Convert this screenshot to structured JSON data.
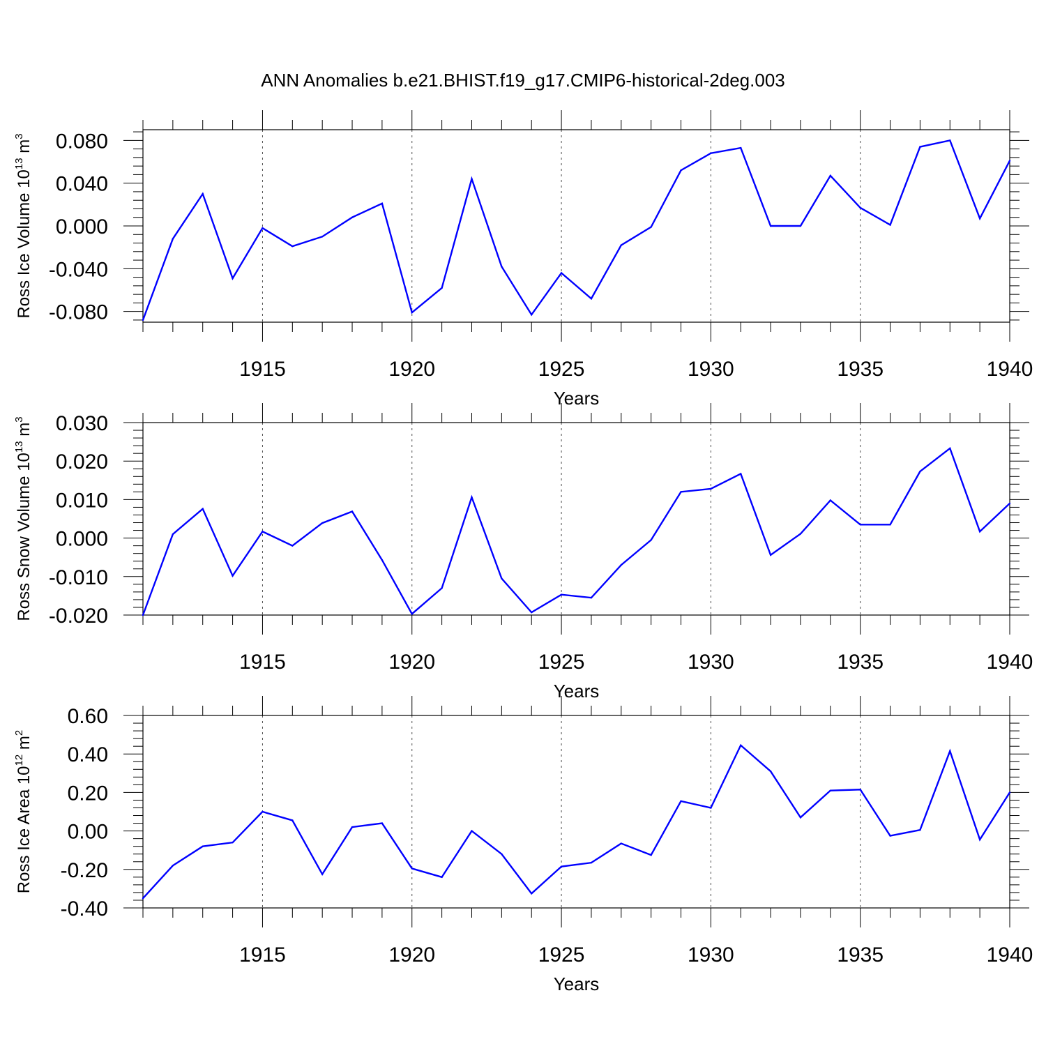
{
  "title": "ANN Anomalies b.e21.BHIST.f19_g17.CMIP6-historical-2deg.003",
  "colors": {
    "line": "#0000ff",
    "axes": "#000000",
    "grid": "#000000"
  },
  "chart_data": [
    {
      "type": "line",
      "ylabel_text": "Ross Ice Volume 10",
      "ylabel_exp": "13",
      "ylabel_unit": " m",
      "ylabel_unit_exp": "3",
      "xlabel": "Years",
      "xlim": [
        1911,
        1940
      ],
      "ylim": [
        -0.09,
        0.09
      ],
      "yticks": [
        -0.08,
        -0.04,
        0.0,
        0.04,
        0.08
      ],
      "ytick_labels": [
        "-0.080",
        "-0.040",
        "0.000",
        "0.040",
        "0.080"
      ],
      "xticks": [
        1915,
        1920,
        1925,
        1930,
        1935,
        1940
      ],
      "xtick_labels": [
        "1915",
        "1920",
        "1925",
        "1930",
        "1935",
        "1940"
      ],
      "grid": "vertical dashed at major x ticks",
      "x": [
        1911,
        1912,
        1913,
        1914,
        1915,
        1916,
        1917,
        1918,
        1919,
        1920,
        1921,
        1922,
        1923,
        1924,
        1925,
        1926,
        1927,
        1928,
        1929,
        1930,
        1931,
        1932,
        1933,
        1934,
        1935,
        1936,
        1937,
        1938,
        1939,
        1940
      ],
      "values": [
        -0.088,
        -0.012,
        0.03,
        -0.049,
        -0.002,
        -0.019,
        -0.01,
        0.008,
        0.021,
        -0.081,
        -0.058,
        0.044,
        -0.038,
        -0.083,
        -0.044,
        -0.068,
        -0.018,
        -0.001,
        0.052,
        0.068,
        0.073,
        0.0,
        0.0,
        0.047,
        0.017,
        0.001,
        0.074,
        0.08,
        0.007,
        0.061
      ]
    },
    {
      "type": "line",
      "ylabel_text": "Ross Snow Volume 10",
      "ylabel_exp": "13",
      "ylabel_unit": " m",
      "ylabel_unit_exp": "3",
      "xlabel": "Years",
      "xlim": [
        1911,
        1940
      ],
      "ylim": [
        -0.02,
        0.03
      ],
      "yticks": [
        -0.02,
        -0.01,
        0.0,
        0.01,
        0.02,
        0.03
      ],
      "ytick_labels": [
        "-0.020",
        "-0.010",
        "0.000",
        "0.010",
        "0.020",
        "0.030"
      ],
      "xticks": [
        1915,
        1920,
        1925,
        1930,
        1935,
        1940
      ],
      "xtick_labels": [
        "1915",
        "1920",
        "1925",
        "1930",
        "1935",
        "1940"
      ],
      "grid": "vertical dashed at major x ticks",
      "x": [
        1911,
        1912,
        1913,
        1914,
        1915,
        1916,
        1917,
        1918,
        1919,
        1920,
        1921,
        1922,
        1923,
        1924,
        1925,
        1926,
        1927,
        1928,
        1929,
        1930,
        1931,
        1932,
        1933,
        1934,
        1935,
        1936,
        1937,
        1938,
        1939,
        1940
      ],
      "values": [
        -0.02,
        0.001,
        0.0076,
        -0.0098,
        0.0017,
        -0.002,
        0.0039,
        0.0069,
        -0.0057,
        -0.0197,
        -0.013,
        0.0106,
        -0.0105,
        -0.0193,
        -0.0147,
        -0.0155,
        -0.007,
        -0.0005,
        0.012,
        0.0128,
        0.0167,
        -0.0044,
        0.0011,
        0.0098,
        0.0035,
        0.0035,
        0.0173,
        0.0233,
        0.0017,
        0.009
      ]
    },
    {
      "type": "line",
      "ylabel_text": "Ross Ice Area 10",
      "ylabel_exp": "12",
      "ylabel_unit": " m",
      "ylabel_unit_exp": "2",
      "xlabel": "Years",
      "xlim": [
        1911,
        1940
      ],
      "ylim": [
        -0.4,
        0.6
      ],
      "yticks": [
        -0.4,
        -0.2,
        0.0,
        0.2,
        0.4,
        0.6
      ],
      "ytick_labels": [
        "-0.40",
        "-0.20",
        "0.00",
        "0.20",
        "0.40",
        "0.60"
      ],
      "xticks": [
        1915,
        1920,
        1925,
        1930,
        1935,
        1940
      ],
      "xtick_labels": [
        "1915",
        "1920",
        "1925",
        "1930",
        "1935",
        "1940"
      ],
      "grid": "vertical dashed at major x ticks",
      "x": [
        1911,
        1912,
        1913,
        1914,
        1915,
        1916,
        1917,
        1918,
        1919,
        1920,
        1921,
        1922,
        1923,
        1924,
        1925,
        1926,
        1927,
        1928,
        1929,
        1930,
        1931,
        1932,
        1933,
        1934,
        1935,
        1936,
        1937,
        1938,
        1939,
        1940
      ],
      "values": [
        -0.35,
        -0.18,
        -0.08,
        -0.06,
        0.1,
        0.055,
        -0.225,
        0.02,
        0.04,
        -0.195,
        -0.24,
        0.0,
        -0.12,
        -0.325,
        -0.185,
        -0.165,
        -0.065,
        -0.125,
        0.155,
        0.12,
        0.445,
        0.31,
        0.07,
        0.21,
        0.215,
        -0.025,
        0.005,
        0.415,
        -0.045,
        0.2
      ]
    }
  ]
}
